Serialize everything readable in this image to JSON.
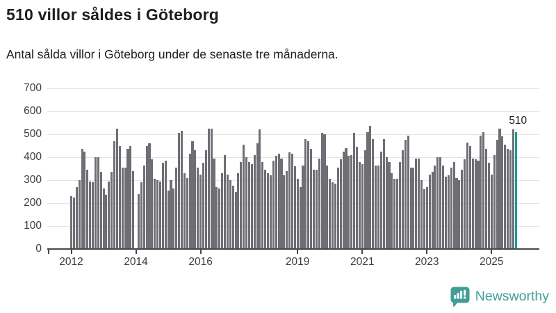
{
  "header": {
    "title": "510 villor såldes i Göteborg",
    "subtitle": "Antal sålda villor i Göteborg under de senaste tre månaderna."
  },
  "chart_data": {
    "type": "bar",
    "title": "510 villor såldes i Göteborg",
    "subtitle": "Antal sålda villor i Göteborg under de senaste tre månaderna.",
    "frequency": "monthly",
    "x_start": "2012-01",
    "x_end": "2025-10",
    "missing_month_index": 24,
    "values": [
      230,
      225,
      270,
      300,
      435,
      425,
      345,
      295,
      290,
      400,
      400,
      335,
      265,
      235,
      295,
      335,
      470,
      525,
      450,
      355,
      355,
      435,
      450,
      340,
      null,
      240,
      290,
      365,
      450,
      460,
      390,
      305,
      300,
      295,
      375,
      385,
      255,
      300,
      265,
      355,
      505,
      515,
      330,
      310,
      415,
      470,
      430,
      355,
      325,
      375,
      430,
      525,
      525,
      395,
      270,
      265,
      330,
      410,
      325,
      300,
      275,
      250,
      330,
      380,
      455,
      400,
      380,
      370,
      410,
      460,
      520,
      380,
      345,
      330,
      320,
      385,
      405,
      415,
      395,
      320,
      340,
      420,
      415,
      360,
      305,
      270,
      365,
      480,
      470,
      435,
      345,
      345,
      395,
      505,
      500,
      365,
      305,
      290,
      285,
      355,
      390,
      425,
      440,
      405,
      410,
      505,
      445,
      380,
      370,
      430,
      510,
      535,
      480,
      365,
      365,
      425,
      480,
      400,
      380,
      330,
      305,
      305,
      380,
      430,
      475,
      495,
      355,
      355,
      395,
      395,
      300,
      260,
      270,
      325,
      335,
      365,
      400,
      400,
      365,
      315,
      320,
      355,
      380,
      310,
      300,
      345,
      390,
      465,
      450,
      395,
      390,
      385,
      495,
      510,
      435,
      375,
      325,
      410,
      475,
      525,
      490,
      455,
      435,
      430,
      520,
      510
    ],
    "y_ticks": [
      0,
      100,
      200,
      300,
      400,
      500,
      600,
      700
    ],
    "ylim": [
      0,
      700
    ],
    "x_tick_labels": [
      "2012",
      "2014",
      "2016",
      "2019",
      "2021",
      "2023",
      "2025"
    ],
    "x_tick_month_indices": [
      0,
      24,
      48,
      84,
      108,
      132,
      156
    ],
    "grid": "horizontal",
    "legend": "none",
    "bar_color": "#6e6e74",
    "grid_color": "#e4e4e4",
    "axis_color": "#474747",
    "highlight": {
      "index": 165,
      "value": 510,
      "label": "510",
      "color": "#149e9b"
    }
  },
  "footer": {
    "brand": "Newsworthy",
    "logo_color": "#3f9f98",
    "logo_icon": "bar-chart-speech-bubble"
  }
}
